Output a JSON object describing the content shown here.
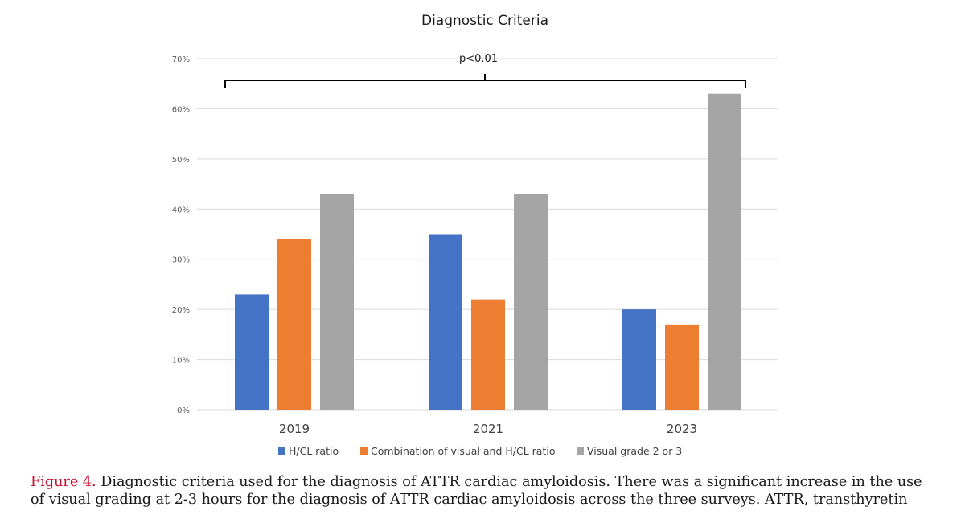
{
  "colors": {
    "series": [
      "#4472c4",
      "#ed7d31",
      "#a5a5a5"
    ],
    "gridline": "#d9d9d9",
    "caption_label": "#c8102e"
  },
  "chart_data": {
    "type": "bar",
    "title": "Diagnostic Criteria",
    "categories": [
      "2019",
      "2021",
      "2023"
    ],
    "series": [
      {
        "name": "H/CL ratio",
        "values": [
          23,
          35,
          20
        ]
      },
      {
        "name": "Combination of visual and H/CL ratio",
        "values": [
          34,
          22,
          17
        ]
      },
      {
        "name": "Visual grade 2 or 3",
        "values": [
          43,
          43,
          63
        ]
      }
    ],
    "ylim": [
      0,
      70
    ],
    "y_ticks": [
      "0%",
      "10%",
      "20%",
      "30%",
      "40%",
      "50%",
      "60%",
      "70%"
    ],
    "xlabel": "",
    "ylabel": "",
    "grid": true,
    "legend_position": "bottom",
    "annotation": "p<0.01"
  },
  "caption": {
    "label": "Figure 4.",
    "text": " Diagnostic criteria used for the diagnosis of ATTR cardiac amyloidosis. There was a significant increase in the use of visual grading at 2-3 hours for the diagnosis of ATTR cardiac amyloidosis across the three surveys. ATTR, transthyretin"
  }
}
